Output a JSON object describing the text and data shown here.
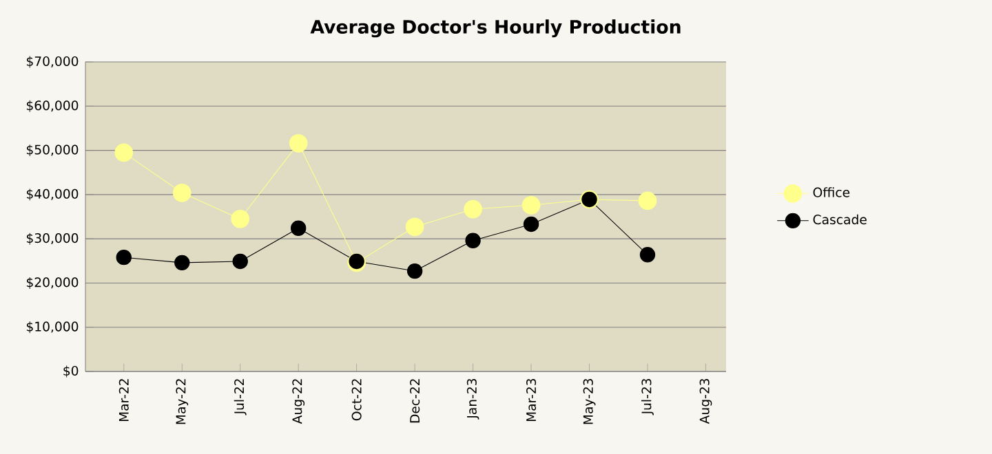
{
  "chart_data": {
    "type": "line",
    "title": "Average Doctor's Hourly Production",
    "categories": [
      "Mar-22",
      "May-22",
      "Jul-22",
      "Aug-22",
      "Oct-22",
      "Dec-22",
      "Jan-23",
      "Mar-23",
      "May-23",
      "Jul-23",
      "Aug-23"
    ],
    "series": [
      {
        "name": "Office",
        "color": "#ffff8c",
        "values": [
          49500,
          40400,
          34500,
          51600,
          24600,
          32700,
          36700,
          37600,
          38900,
          38600,
          null
        ]
      },
      {
        "name": "Cascade",
        "color": "#000000",
        "values": [
          25800,
          24600,
          24900,
          32400,
          24900,
          22700,
          29600,
          33300,
          38900,
          26400,
          null
        ]
      }
    ],
    "ylim": [
      0,
      70000
    ],
    "yticks": [
      {
        "value": 0,
        "label": "$0"
      },
      {
        "value": 10000,
        "label": "$10,000"
      },
      {
        "value": 20000,
        "label": "$20,000"
      },
      {
        "value": 30000,
        "label": "$30,000"
      },
      {
        "value": 40000,
        "label": "$40,000"
      },
      {
        "value": 50000,
        "label": "$50,000"
      },
      {
        "value": 60000,
        "label": "$60,000"
      },
      {
        "value": 70000,
        "label": "$70,000"
      }
    ],
    "grid": "y",
    "legend": "right",
    "marker": "circle",
    "line_style": "solid"
  }
}
